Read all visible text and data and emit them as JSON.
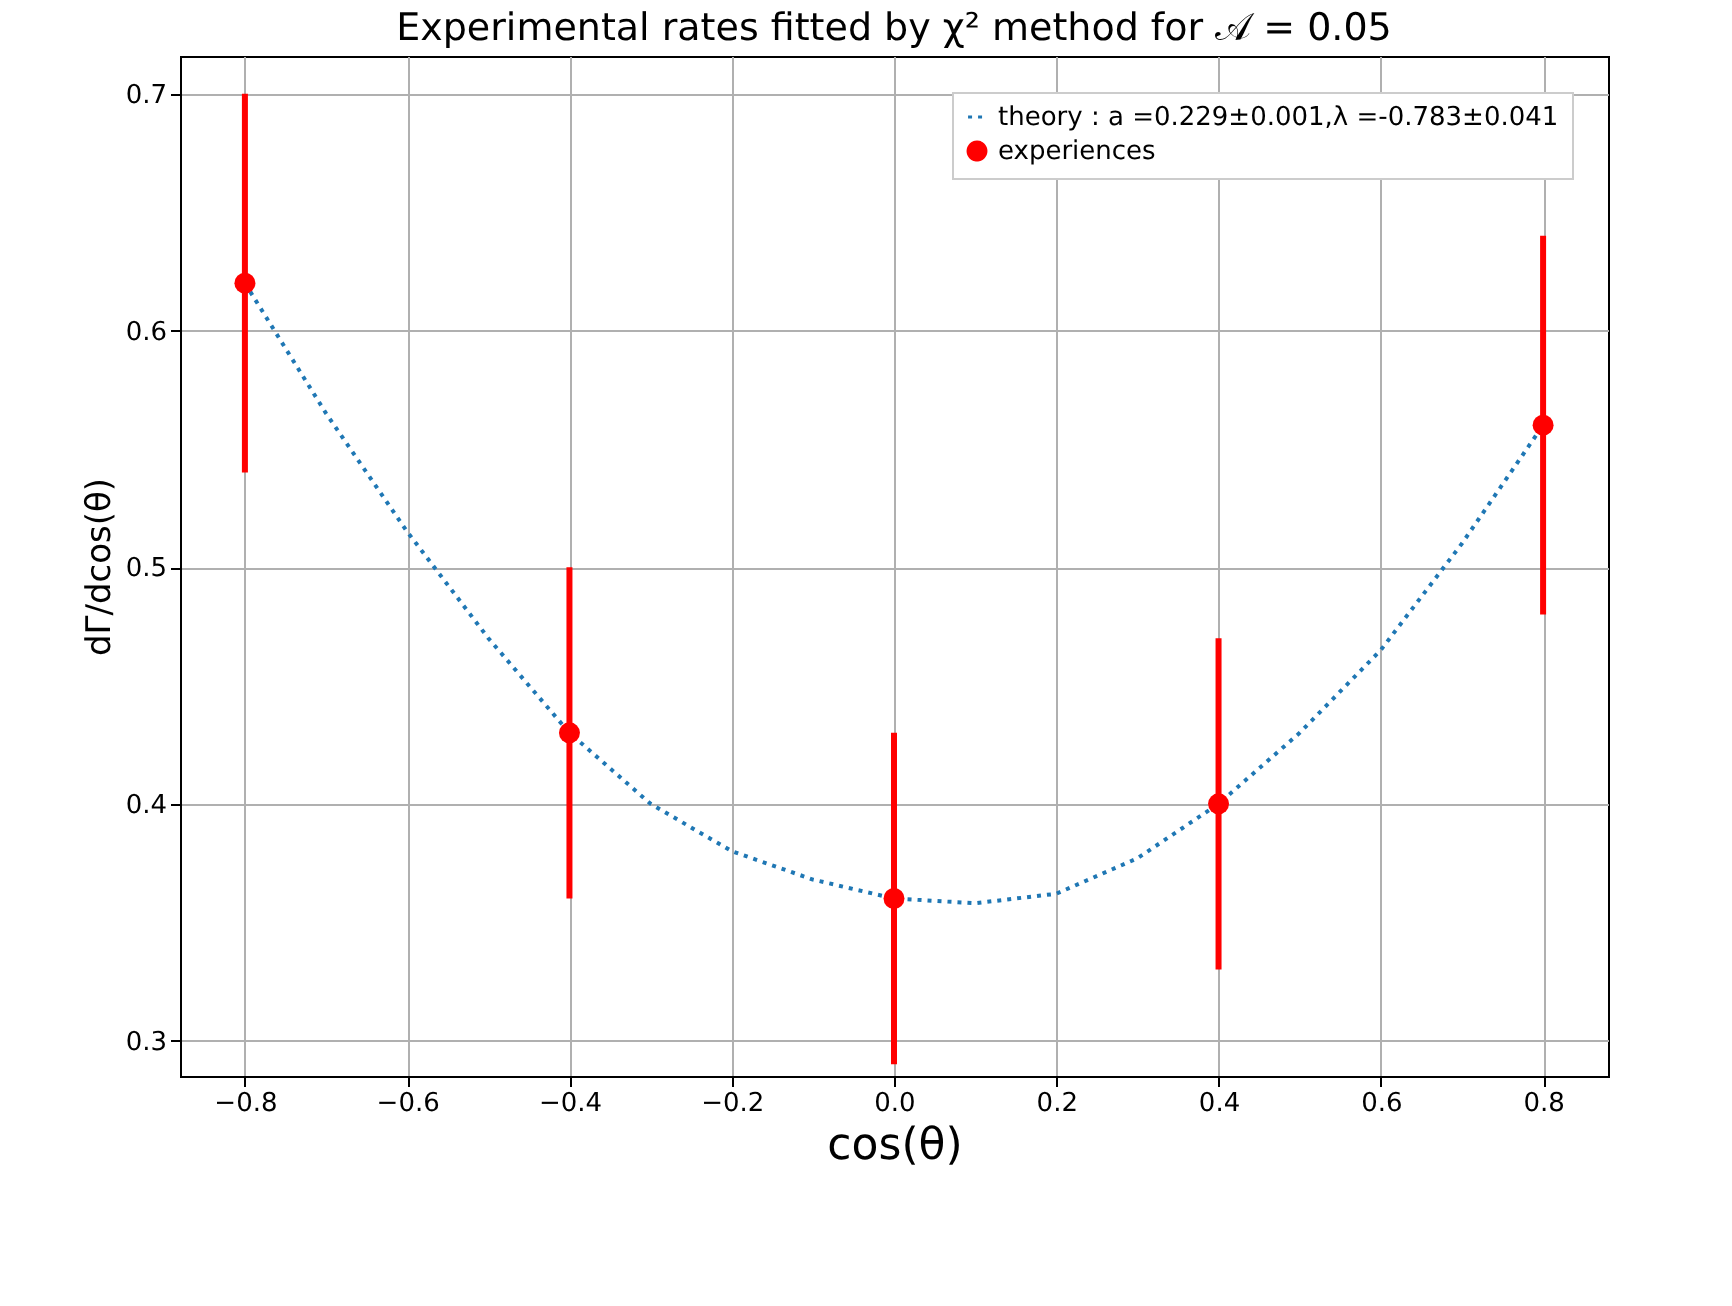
{
  "chart_data": {
    "type": "scatter",
    "title": "Experimental rates fitted by χ² method for 𝒜 = 0.05",
    "xlabel": "cos(θ)",
    "ylabel": "dΓ/dcos(θ)",
    "xlim": [
      -0.88,
      0.88
    ],
    "ylim": [
      0.285,
      0.716
    ],
    "xticks": [
      -0.8,
      -0.6,
      -0.4,
      -0.2,
      {
        "value": 0,
        "label": "0.0"
      },
      0.2,
      0.4,
      0.6,
      0.8
    ],
    "yticks": [
      0.3,
      0.4,
      0.5,
      0.6,
      0.7
    ],
    "grid": true,
    "legend": "top right",
    "series": [
      {
        "name": "theory : a =0.229±0.001,λ =-0.783±0.041",
        "type": "line",
        "color": "#1f77b4",
        "line_style": "dotted",
        "marker": "none",
        "x": [
          -0.8,
          -0.7,
          -0.6,
          -0.5,
          -0.4,
          -0.3,
          -0.2,
          -0.1,
          0.0,
          0.1,
          0.2,
          0.3,
          0.4,
          0.5,
          0.6,
          0.7,
          0.8
        ],
        "values": [
          0.62,
          0.565,
          0.515,
          0.47,
          0.43,
          0.4,
          0.38,
          0.368,
          0.36,
          0.358,
          0.362,
          0.377,
          0.4,
          0.43,
          0.465,
          0.51,
          0.56
        ]
      },
      {
        "name": "experiences",
        "color": "#ff0000",
        "marker": "circle",
        "x": [
          -0.8,
          -0.4,
          0.0,
          0.4,
          0.8
        ],
        "values": [
          0.62,
          0.43,
          0.36,
          0.4,
          0.56
        ],
        "errors": [
          0.08,
          0.07,
          0.07,
          0.07,
          0.08
        ]
      }
    ]
  }
}
